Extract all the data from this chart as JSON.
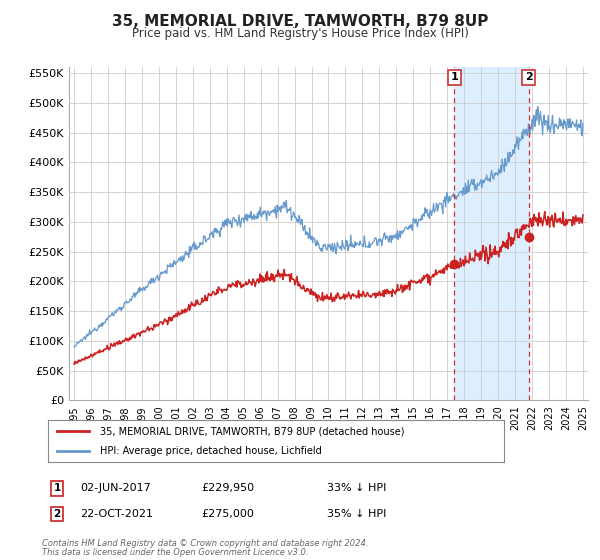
{
  "title": "35, MEMORIAL DRIVE, TAMWORTH, B79 8UP",
  "subtitle": "Price paid vs. HM Land Registry's House Price Index (HPI)",
  "ylim": [
    0,
    560000
  ],
  "yticks": [
    0,
    50000,
    100000,
    150000,
    200000,
    250000,
    300000,
    350000,
    400000,
    450000,
    500000,
    550000
  ],
  "ytick_labels": [
    "£0",
    "£50K",
    "£100K",
    "£150K",
    "£200K",
    "£250K",
    "£300K",
    "£350K",
    "£400K",
    "£450K",
    "£500K",
    "£550K"
  ],
  "hpi_color": "#6699cc",
  "sale_color": "#cc2222",
  "dot_color": "#cc2222",
  "vline_color": "#cc3333",
  "shade_color": "#ddeeff",
  "grid_color": "#cccccc",
  "background_color": "#ffffff",
  "marker1_date": "02-JUN-2017",
  "marker1_price": "£229,950",
  "marker1_pct": "33% ↓ HPI",
  "marker2_date": "22-OCT-2021",
  "marker2_price": "£275,000",
  "marker2_pct": "35% ↓ HPI",
  "sale1_year": 2017.42,
  "sale1_value": 229950,
  "sale2_year": 2021.81,
  "sale2_value": 275000,
  "legend_line1": "35, MEMORIAL DRIVE, TAMWORTH, B79 8UP (detached house)",
  "legend_line2": "HPI: Average price, detached house, Lichfield",
  "footer1": "Contains HM Land Registry data © Crown copyright and database right 2024.",
  "footer2": "This data is licensed under the Open Government Licence v3.0.",
  "xlim_left": 1994.7,
  "xlim_right": 2025.3
}
